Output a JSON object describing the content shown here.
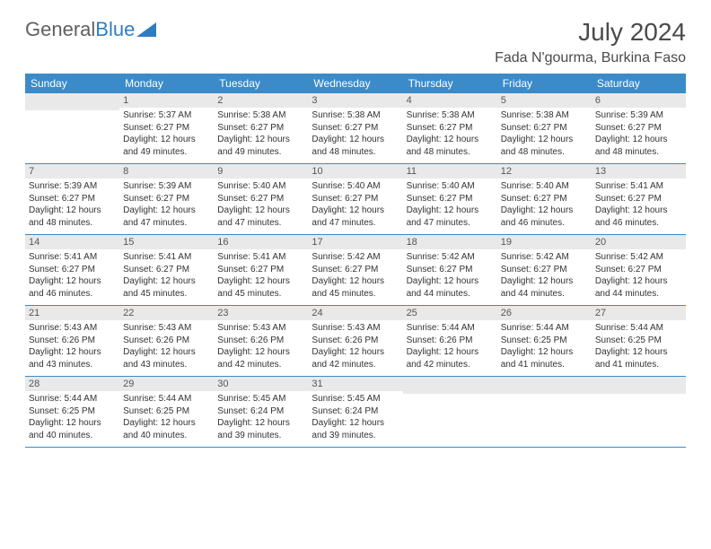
{
  "logo": {
    "text1": "General",
    "text2": "Blue"
  },
  "title": "July 2024",
  "location": "Fada N'gourma, Burkina Faso",
  "dayHeaders": [
    "Sunday",
    "Monday",
    "Tuesday",
    "Wednesday",
    "Thursday",
    "Friday",
    "Saturday"
  ],
  "colors": {
    "header_bg": "#3b8bc9",
    "header_text": "#ffffff",
    "daynum_bg": "#e9e9e9",
    "border": "#3b8bc9",
    "logo_gray": "#606060",
    "logo_blue": "#2f7dc0",
    "text": "#333333"
  },
  "firstDayOffset": 1,
  "days": [
    {
      "n": "1",
      "sr": "Sunrise: 5:37 AM",
      "ss": "Sunset: 6:27 PM",
      "d1": "Daylight: 12 hours",
      "d2": "and 49 minutes."
    },
    {
      "n": "2",
      "sr": "Sunrise: 5:38 AM",
      "ss": "Sunset: 6:27 PM",
      "d1": "Daylight: 12 hours",
      "d2": "and 49 minutes."
    },
    {
      "n": "3",
      "sr": "Sunrise: 5:38 AM",
      "ss": "Sunset: 6:27 PM",
      "d1": "Daylight: 12 hours",
      "d2": "and 48 minutes."
    },
    {
      "n": "4",
      "sr": "Sunrise: 5:38 AM",
      "ss": "Sunset: 6:27 PM",
      "d1": "Daylight: 12 hours",
      "d2": "and 48 minutes."
    },
    {
      "n": "5",
      "sr": "Sunrise: 5:38 AM",
      "ss": "Sunset: 6:27 PM",
      "d1": "Daylight: 12 hours",
      "d2": "and 48 minutes."
    },
    {
      "n": "6",
      "sr": "Sunrise: 5:39 AM",
      "ss": "Sunset: 6:27 PM",
      "d1": "Daylight: 12 hours",
      "d2": "and 48 minutes."
    },
    {
      "n": "7",
      "sr": "Sunrise: 5:39 AM",
      "ss": "Sunset: 6:27 PM",
      "d1": "Daylight: 12 hours",
      "d2": "and 48 minutes."
    },
    {
      "n": "8",
      "sr": "Sunrise: 5:39 AM",
      "ss": "Sunset: 6:27 PM",
      "d1": "Daylight: 12 hours",
      "d2": "and 47 minutes."
    },
    {
      "n": "9",
      "sr": "Sunrise: 5:40 AM",
      "ss": "Sunset: 6:27 PM",
      "d1": "Daylight: 12 hours",
      "d2": "and 47 minutes."
    },
    {
      "n": "10",
      "sr": "Sunrise: 5:40 AM",
      "ss": "Sunset: 6:27 PM",
      "d1": "Daylight: 12 hours",
      "d2": "and 47 minutes."
    },
    {
      "n": "11",
      "sr": "Sunrise: 5:40 AM",
      "ss": "Sunset: 6:27 PM",
      "d1": "Daylight: 12 hours",
      "d2": "and 47 minutes."
    },
    {
      "n": "12",
      "sr": "Sunrise: 5:40 AM",
      "ss": "Sunset: 6:27 PM",
      "d1": "Daylight: 12 hours",
      "d2": "and 46 minutes."
    },
    {
      "n": "13",
      "sr": "Sunrise: 5:41 AM",
      "ss": "Sunset: 6:27 PM",
      "d1": "Daylight: 12 hours",
      "d2": "and 46 minutes."
    },
    {
      "n": "14",
      "sr": "Sunrise: 5:41 AM",
      "ss": "Sunset: 6:27 PM",
      "d1": "Daylight: 12 hours",
      "d2": "and 46 minutes."
    },
    {
      "n": "15",
      "sr": "Sunrise: 5:41 AM",
      "ss": "Sunset: 6:27 PM",
      "d1": "Daylight: 12 hours",
      "d2": "and 45 minutes."
    },
    {
      "n": "16",
      "sr": "Sunrise: 5:41 AM",
      "ss": "Sunset: 6:27 PM",
      "d1": "Daylight: 12 hours",
      "d2": "and 45 minutes."
    },
    {
      "n": "17",
      "sr": "Sunrise: 5:42 AM",
      "ss": "Sunset: 6:27 PM",
      "d1": "Daylight: 12 hours",
      "d2": "and 45 minutes."
    },
    {
      "n": "18",
      "sr": "Sunrise: 5:42 AM",
      "ss": "Sunset: 6:27 PM",
      "d1": "Daylight: 12 hours",
      "d2": "and 44 minutes."
    },
    {
      "n": "19",
      "sr": "Sunrise: 5:42 AM",
      "ss": "Sunset: 6:27 PM",
      "d1": "Daylight: 12 hours",
      "d2": "and 44 minutes."
    },
    {
      "n": "20",
      "sr": "Sunrise: 5:42 AM",
      "ss": "Sunset: 6:27 PM",
      "d1": "Daylight: 12 hours",
      "d2": "and 44 minutes."
    },
    {
      "n": "21",
      "sr": "Sunrise: 5:43 AM",
      "ss": "Sunset: 6:26 PM",
      "d1": "Daylight: 12 hours",
      "d2": "and 43 minutes."
    },
    {
      "n": "22",
      "sr": "Sunrise: 5:43 AM",
      "ss": "Sunset: 6:26 PM",
      "d1": "Daylight: 12 hours",
      "d2": "and 43 minutes."
    },
    {
      "n": "23",
      "sr": "Sunrise: 5:43 AM",
      "ss": "Sunset: 6:26 PM",
      "d1": "Daylight: 12 hours",
      "d2": "and 42 minutes."
    },
    {
      "n": "24",
      "sr": "Sunrise: 5:43 AM",
      "ss": "Sunset: 6:26 PM",
      "d1": "Daylight: 12 hours",
      "d2": "and 42 minutes."
    },
    {
      "n": "25",
      "sr": "Sunrise: 5:44 AM",
      "ss": "Sunset: 6:26 PM",
      "d1": "Daylight: 12 hours",
      "d2": "and 42 minutes."
    },
    {
      "n": "26",
      "sr": "Sunrise: 5:44 AM",
      "ss": "Sunset: 6:25 PM",
      "d1": "Daylight: 12 hours",
      "d2": "and 41 minutes."
    },
    {
      "n": "27",
      "sr": "Sunrise: 5:44 AM",
      "ss": "Sunset: 6:25 PM",
      "d1": "Daylight: 12 hours",
      "d2": "and 41 minutes."
    },
    {
      "n": "28",
      "sr": "Sunrise: 5:44 AM",
      "ss": "Sunset: 6:25 PM",
      "d1": "Daylight: 12 hours",
      "d2": "and 40 minutes."
    },
    {
      "n": "29",
      "sr": "Sunrise: 5:44 AM",
      "ss": "Sunset: 6:25 PM",
      "d1": "Daylight: 12 hours",
      "d2": "and 40 minutes."
    },
    {
      "n": "30",
      "sr": "Sunrise: 5:45 AM",
      "ss": "Sunset: 6:24 PM",
      "d1": "Daylight: 12 hours",
      "d2": "and 39 minutes."
    },
    {
      "n": "31",
      "sr": "Sunrise: 5:45 AM",
      "ss": "Sunset: 6:24 PM",
      "d1": "Daylight: 12 hours",
      "d2": "and 39 minutes."
    }
  ]
}
